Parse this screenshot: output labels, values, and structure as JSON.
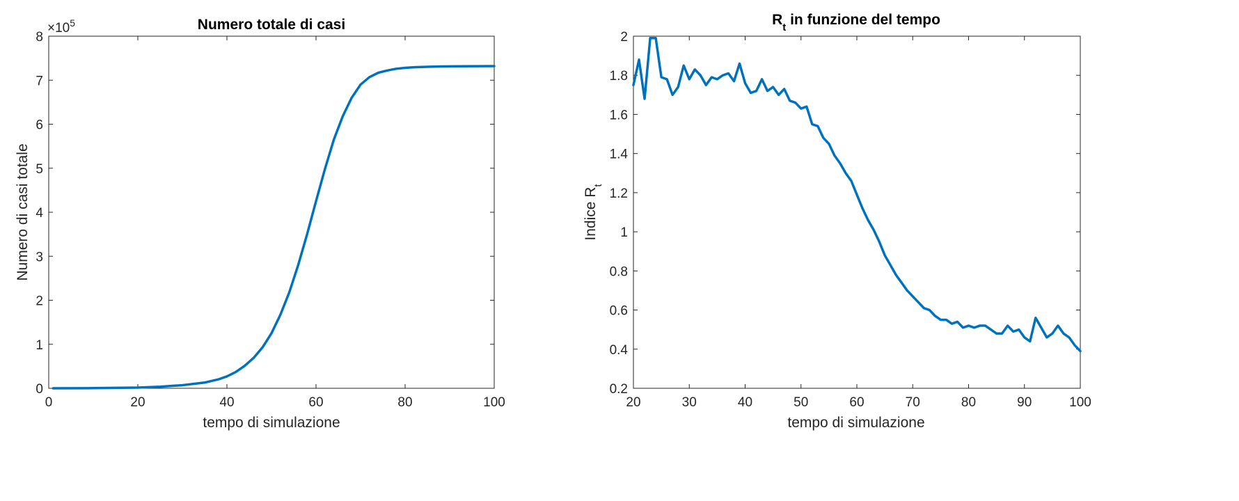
{
  "colors": {
    "line": "#0072BD",
    "axis": "#262626",
    "background": "#ffffff"
  },
  "chart_data": [
    {
      "type": "line",
      "title": "Numero totale di casi",
      "xlabel": "tempo di simulazione",
      "ylabel": "Numero di casi totale",
      "xlim": [
        0,
        100
      ],
      "ylim": [
        0,
        800000
      ],
      "xticks": [
        "0",
        "20",
        "40",
        "60",
        "80",
        "100"
      ],
      "yticks": [
        "0",
        "1",
        "2",
        "3",
        "4",
        "5",
        "6",
        "7",
        "8"
      ],
      "yexponent": {
        "base": "×10",
        "power": "5"
      },
      "grid": false,
      "series": [
        {
          "x": [
            1,
            10,
            20,
            25,
            30,
            35,
            38,
            40,
            42,
            44,
            46,
            48,
            50,
            52,
            54,
            56,
            58,
            60,
            62,
            64,
            66,
            68,
            70,
            72,
            74,
            76,
            78,
            80,
            82,
            85,
            88,
            92,
            96,
            100
          ],
          "values": [
            0,
            300,
            1500,
            3500,
            7000,
            13000,
            20000,
            27000,
            37000,
            51000,
            69000,
            93000,
            125000,
            167000,
            218000,
            280000,
            350000,
            425000,
            498000,
            565000,
            618000,
            660000,
            690000,
            707000,
            717000,
            722000,
            726000,
            728000,
            729500,
            730500,
            731200,
            731600,
            731800,
            732000
          ]
        }
      ]
    },
    {
      "type": "line",
      "title": "R_t in funzione del tempo",
      "title_parts": {
        "main": "R",
        "sub": "t",
        "rest": " in funzione del tempo"
      },
      "xlabel": "tempo di simulazione",
      "ylabel": "Indice R_t",
      "ylabel_parts": {
        "main": "Indice R",
        "sub": "t"
      },
      "xlim": [
        20,
        100
      ],
      "ylim": [
        0.2,
        2
      ],
      "xticks": [
        "20",
        "30",
        "40",
        "50",
        "60",
        "70",
        "80",
        "90",
        "100"
      ],
      "yticks": [
        "0.2",
        "0.4",
        "0.6",
        "0.8",
        "1",
        "1.2",
        "1.4",
        "1.6",
        "1.8",
        "2"
      ],
      "grid": false,
      "series": [
        {
          "x": [
            20,
            21,
            22,
            23,
            24,
            25,
            26,
            27,
            28,
            29,
            30,
            31,
            32,
            33,
            34,
            35,
            36,
            37,
            38,
            39,
            40,
            41,
            42,
            43,
            44,
            45,
            46,
            47,
            48,
            49,
            50,
            51,
            52,
            53,
            54,
            55,
            56,
            57,
            58,
            59,
            60,
            61,
            62,
            63,
            64,
            65,
            66,
            67,
            68,
            69,
            70,
            71,
            72,
            73,
            74,
            75,
            76,
            77,
            78,
            79,
            80,
            81,
            82,
            83,
            84,
            85,
            86,
            87,
            88,
            89,
            90,
            91,
            92,
            93,
            94,
            95,
            96,
            97,
            98,
            99,
            100
          ],
          "values": [
            1.75,
            1.88,
            1.68,
            1.99,
            1.99,
            1.79,
            1.78,
            1.7,
            1.74,
            1.85,
            1.78,
            1.83,
            1.8,
            1.75,
            1.79,
            1.78,
            1.8,
            1.81,
            1.77,
            1.86,
            1.76,
            1.71,
            1.72,
            1.78,
            1.72,
            1.74,
            1.7,
            1.73,
            1.67,
            1.66,
            1.63,
            1.64,
            1.55,
            1.54,
            1.48,
            1.45,
            1.39,
            1.35,
            1.3,
            1.26,
            1.19,
            1.12,
            1.06,
            1.01,
            0.95,
            0.88,
            0.83,
            0.78,
            0.74,
            0.7,
            0.67,
            0.64,
            0.61,
            0.6,
            0.57,
            0.55,
            0.55,
            0.53,
            0.54,
            0.51,
            0.52,
            0.51,
            0.52,
            0.52,
            0.5,
            0.48,
            0.48,
            0.52,
            0.49,
            0.5,
            0.46,
            0.44,
            0.56,
            0.51,
            0.46,
            0.48,
            0.52,
            0.48,
            0.46,
            0.42,
            0.39
          ]
        }
      ]
    }
  ]
}
